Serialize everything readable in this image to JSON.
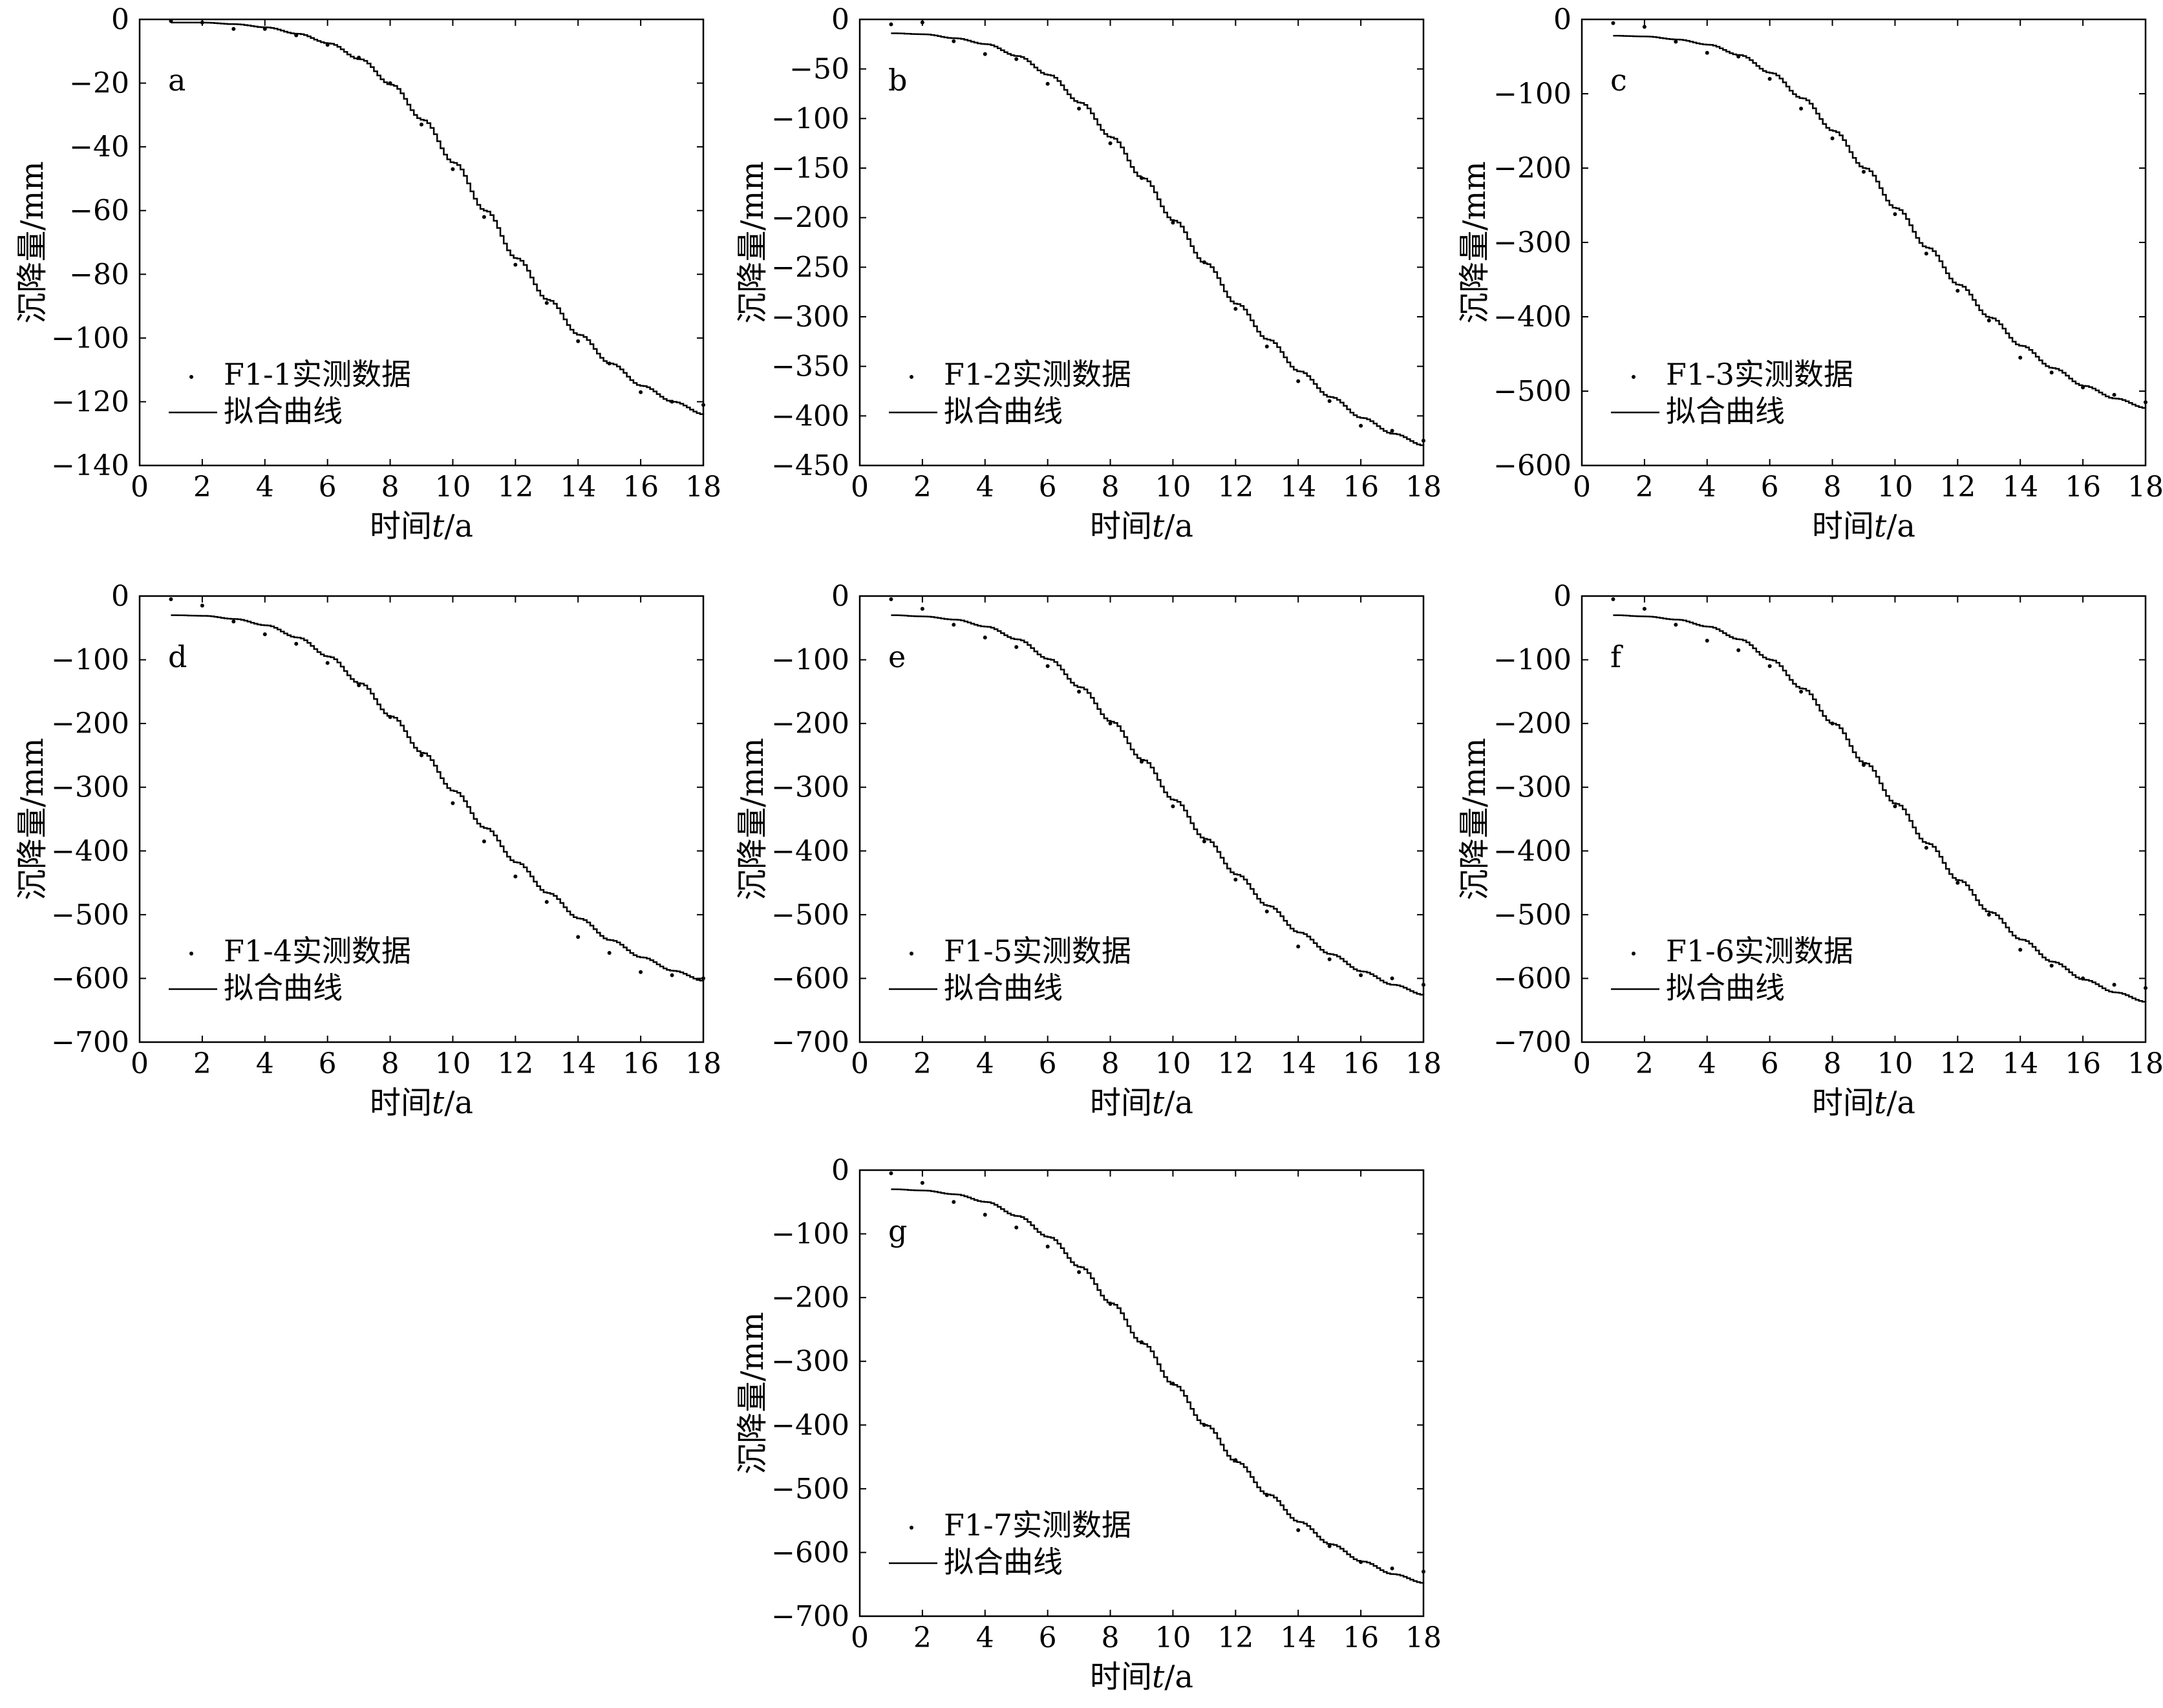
{
  "figure": {
    "axis_label_y": "沉降量/mm",
    "axis_label_x_prefix": "时间",
    "axis_label_x_var": "t",
    "axis_label_x_suffix": "/a",
    "fit_label": "拟合曲线"
  },
  "chart_data": [
    {
      "type": "line",
      "panel_label": "a",
      "xlim": [
        0,
        18
      ],
      "ylim": [
        -140,
        0
      ],
      "xticks": [
        "0",
        "2",
        "4",
        "6",
        "8",
        "10",
        "12",
        "14",
        "16",
        "18"
      ],
      "yticks": [
        "0",
        "−20",
        "−40",
        "−60",
        "−80",
        "−100",
        "−120",
        "−140"
      ],
      "xlabel": "时间t/a",
      "ylabel": "沉降量/mm",
      "legend": [
        "F1-1实测数据",
        "拟合曲线"
      ],
      "legend_placement": "bottom-left",
      "series": [
        {
          "name": "F1-1实测数据",
          "style": "points",
          "x": [
            1,
            2,
            3,
            4,
            5,
            6,
            7,
            8,
            9,
            10,
            11,
            12,
            13,
            14,
            15,
            16,
            17,
            18
          ],
          "y": [
            -0.5,
            -1,
            -3,
            -3,
            -5,
            -8,
            -12,
            -20,
            -33,
            -47,
            -62,
            -77,
            -89,
            -101,
            -108,
            -117,
            -120,
            -121
          ]
        },
        {
          "name": "拟合曲线",
          "style": "line",
          "x": [
            1,
            2,
            3,
            4,
            5,
            6,
            7,
            8,
            9,
            10,
            11,
            12,
            13,
            14,
            15,
            16,
            17,
            18
          ],
          "y": [
            -1,
            -1,
            -1.5,
            -2.5,
            -4.5,
            -7.5,
            -12.5,
            -20.5,
            -31.5,
            -45,
            -60,
            -75,
            -88,
            -99,
            -108,
            -115,
            -120,
            -124
          ]
        }
      ]
    },
    {
      "type": "line",
      "panel_label": "b",
      "xlim": [
        0,
        18
      ],
      "ylim": [
        -450,
        0
      ],
      "xticks": [
        "0",
        "2",
        "4",
        "6",
        "8",
        "10",
        "12",
        "14",
        "16",
        "18"
      ],
      "yticks": [
        "0",
        "−50",
        "−100",
        "−150",
        "−200",
        "−250",
        "−300",
        "−350",
        "−400",
        "−450"
      ],
      "xlabel": "时间t/a",
      "ylabel": "沉降量/mm",
      "legend": [
        "F1-2实测数据",
        "拟合曲线"
      ],
      "legend_placement": "bottom-left",
      "series": [
        {
          "name": "F1-2实测数据",
          "style": "points",
          "x": [
            1,
            2,
            3,
            4,
            5,
            6,
            7,
            8,
            9,
            10,
            11,
            12,
            13,
            14,
            15,
            16,
            17,
            18
          ],
          "y": [
            -5,
            -3,
            -22,
            -35,
            -40,
            -65,
            -90,
            -125,
            -160,
            -205,
            -245,
            -292,
            -330,
            -365,
            -385,
            -410,
            -415,
            -425
          ]
        },
        {
          "name": "拟合曲线",
          "style": "line",
          "x": [
            1,
            2,
            3,
            4,
            5,
            6,
            7,
            8,
            9,
            10,
            11,
            12,
            13,
            14,
            15,
            16,
            17,
            18
          ],
          "y": [
            -14,
            -15,
            -19,
            -25,
            -37,
            -56,
            -84,
            -119,
            -160,
            -203,
            -246,
            -287,
            -323,
            -355,
            -381,
            -402,
            -418,
            -430
          ]
        }
      ]
    },
    {
      "type": "line",
      "panel_label": "c",
      "xlim": [
        0,
        18
      ],
      "ylim": [
        -600,
        0
      ],
      "xticks": [
        "0",
        "2",
        "4",
        "6",
        "8",
        "10",
        "12",
        "14",
        "16",
        "18"
      ],
      "yticks": [
        "0",
        "−100",
        "−200",
        "−300",
        "−400",
        "−500",
        "−600"
      ],
      "xlabel": "时间t/a",
      "ylabel": "沉降量/mm",
      "legend": [
        "F1-3实测数据",
        "拟合曲线"
      ],
      "legend_placement": "bottom-left",
      "series": [
        {
          "name": "F1-3实测数据",
          "style": "points",
          "x": [
            1,
            2,
            3,
            4,
            5,
            6,
            7,
            8,
            9,
            10,
            11,
            12,
            13,
            14,
            15,
            16,
            17,
            18
          ],
          "y": [
            -5,
            -10,
            -30,
            -45,
            -50,
            -80,
            -120,
            -160,
            -205,
            -262,
            -315,
            -365,
            -405,
            -455,
            -475,
            -495,
            -505,
            -515
          ]
        },
        {
          "name": "拟合曲线",
          "style": "line",
          "x": [
            1,
            2,
            3,
            4,
            5,
            6,
            7,
            8,
            9,
            10,
            11,
            12,
            13,
            14,
            15,
            16,
            17,
            18
          ],
          "y": [
            -22,
            -23,
            -27,
            -34,
            -48,
            -72,
            -106,
            -150,
            -200,
            -254,
            -307,
            -357,
            -401,
            -439,
            -469,
            -493,
            -510,
            -523
          ]
        }
      ]
    },
    {
      "type": "line",
      "panel_label": "d",
      "xlim": [
        0,
        18
      ],
      "ylim": [
        -700,
        0
      ],
      "xticks": [
        "0",
        "2",
        "4",
        "6",
        "8",
        "10",
        "12",
        "14",
        "16",
        "18"
      ],
      "yticks": [
        "0",
        "−100",
        "−200",
        "−300",
        "−400",
        "−500",
        "−600",
        "−700"
      ],
      "xlabel": "时间t/a",
      "ylabel": "沉降量/mm",
      "legend": [
        "F1-4实测数据",
        "拟合曲线"
      ],
      "legend_placement": "bottom-left",
      "series": [
        {
          "name": "F1-4实测数据",
          "style": "points",
          "x": [
            1,
            2,
            3,
            4,
            5,
            6,
            7,
            8,
            9,
            10,
            11,
            12,
            13,
            14,
            15,
            16,
            17,
            18
          ],
          "y": [
            -5,
            -15,
            -40,
            -60,
            -75,
            -105,
            -140,
            -190,
            -250,
            -325,
            -385,
            -440,
            -480,
            -535,
            -560,
            -590,
            -595,
            -600
          ]
        },
        {
          "name": "拟合曲线",
          "style": "line",
          "x": [
            1,
            2,
            3,
            4,
            5,
            6,
            7,
            8,
            9,
            10,
            11,
            12,
            13,
            14,
            15,
            16,
            17,
            18
          ],
          "y": [
            -30,
            -31,
            -36,
            -46,
            -65,
            -95,
            -137,
            -189,
            -246,
            -306,
            -364,
            -418,
            -466,
            -506,
            -540,
            -567,
            -588,
            -604
          ]
        }
      ]
    },
    {
      "type": "line",
      "panel_label": "e",
      "xlim": [
        0,
        18
      ],
      "ylim": [
        -700,
        0
      ],
      "xticks": [
        "0",
        "2",
        "4",
        "6",
        "8",
        "10",
        "12",
        "14",
        "16",
        "18"
      ],
      "yticks": [
        "0",
        "−100",
        "−200",
        "−300",
        "−400",
        "−500",
        "−600",
        "−700"
      ],
      "xlabel": "时间t/a",
      "ylabel": "沉降量/mm",
      "legend": [
        "F1-5实测数据",
        "拟合曲线"
      ],
      "legend_placement": "bottom-left",
      "series": [
        {
          "name": "F1-5实测数据",
          "style": "points",
          "x": [
            1,
            2,
            3,
            4,
            5,
            6,
            7,
            8,
            9,
            10,
            11,
            12,
            13,
            14,
            15,
            16,
            17,
            18
          ],
          "y": [
            -5,
            -20,
            -45,
            -65,
            -80,
            -110,
            -150,
            -200,
            -260,
            -330,
            -385,
            -445,
            -495,
            -550,
            -570,
            -595,
            -600,
            -610
          ]
        },
        {
          "name": "拟合曲线",
          "style": "line",
          "x": [
            1,
            2,
            3,
            4,
            5,
            6,
            7,
            8,
            9,
            10,
            11,
            12,
            13,
            14,
            15,
            16,
            17,
            18
          ],
          "y": [
            -30,
            -32,
            -37,
            -48,
            -68,
            -99,
            -143,
            -197,
            -257,
            -320,
            -381,
            -437,
            -486,
            -528,
            -562,
            -589,
            -610,
            -626
          ]
        }
      ]
    },
    {
      "type": "line",
      "panel_label": "f",
      "xlim": [
        0,
        18
      ],
      "ylim": [
        -700,
        0
      ],
      "xticks": [
        "0",
        "2",
        "4",
        "6",
        "8",
        "10",
        "12",
        "14",
        "16",
        "18"
      ],
      "yticks": [
        "0",
        "−100",
        "−200",
        "−300",
        "−400",
        "−500",
        "−600",
        "−700"
      ],
      "xlabel": "时间t/a",
      "ylabel": "沉降量/mm",
      "legend": [
        "F1-6实测数据",
        "拟合曲线"
      ],
      "legend_placement": "bottom-left",
      "series": [
        {
          "name": "F1-6实测数据",
          "style": "points",
          "x": [
            1,
            2,
            3,
            4,
            5,
            6,
            7,
            8,
            9,
            10,
            11,
            12,
            13,
            14,
            15,
            16,
            17,
            18
          ],
          "y": [
            -5,
            -20,
            -45,
            -70,
            -85,
            -110,
            -150,
            -200,
            -265,
            -330,
            -395,
            -450,
            -500,
            -555,
            -580,
            -600,
            -610,
            -615
          ]
        },
        {
          "name": "拟合曲线",
          "style": "line",
          "x": [
            1,
            2,
            3,
            4,
            5,
            6,
            7,
            8,
            9,
            10,
            11,
            12,
            13,
            14,
            15,
            16,
            17,
            18
          ],
          "y": [
            -30,
            -32,
            -37,
            -48,
            -68,
            -100,
            -145,
            -200,
            -262,
            -326,
            -388,
            -446,
            -496,
            -539,
            -574,
            -602,
            -622,
            -637
          ]
        }
      ]
    },
    {
      "type": "line",
      "panel_label": "g",
      "xlim": [
        0,
        18
      ],
      "ylim": [
        -700,
        0
      ],
      "xticks": [
        "0",
        "2",
        "4",
        "6",
        "8",
        "10",
        "12",
        "14",
        "16",
        "18"
      ],
      "yticks": [
        "0",
        "−100",
        "−200",
        "−300",
        "−400",
        "−500",
        "−600",
        "−700"
      ],
      "xlabel": "时间t/a",
      "ylabel": "沉降量/mm",
      "legend": [
        "F1-7实测数据",
        "拟合曲线"
      ],
      "legend_placement": "bottom-left",
      "series": [
        {
          "name": "F1-7实测数据",
          "style": "points",
          "x": [
            1,
            2,
            3,
            4,
            5,
            6,
            7,
            8,
            9,
            10,
            11,
            12,
            13,
            14,
            15,
            16,
            17,
            18
          ],
          "y": [
            -5,
            -20,
            -50,
            -70,
            -90,
            -120,
            -160,
            -210,
            -270,
            -335,
            -400,
            -455,
            -510,
            -565,
            -590,
            -615,
            -625,
            -630
          ]
        },
        {
          "name": "拟合曲线",
          "style": "line",
          "x": [
            1,
            2,
            3,
            4,
            5,
            6,
            7,
            8,
            9,
            10,
            11,
            12,
            13,
            14,
            15,
            16,
            17,
            18
          ],
          "y": [
            -30,
            -32,
            -38,
            -50,
            -72,
            -105,
            -152,
            -209,
            -272,
            -337,
            -400,
            -458,
            -509,
            -552,
            -587,
            -614,
            -634,
            -648
          ]
        }
      ]
    }
  ]
}
